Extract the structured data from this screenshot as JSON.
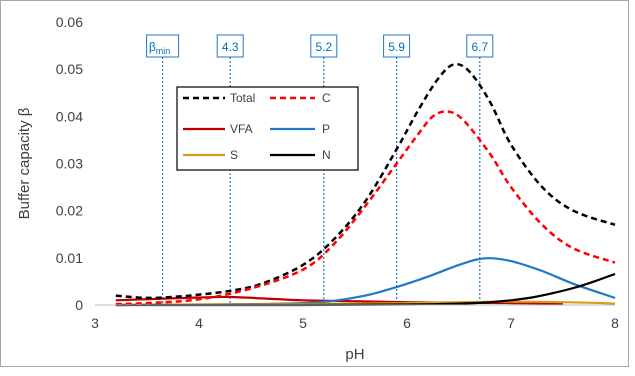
{
  "chart_data": {
    "type": "line",
    "xlabel": "pH",
    "ylabel": "Buffer capacity β",
    "xlim": [
      3,
      8
    ],
    "ylim": [
      0,
      0.06
    ],
    "x_ticks": [
      "3",
      "4",
      "5",
      "6",
      "7",
      "8"
    ],
    "y_ticks": [
      "0",
      "0.01",
      "0.02",
      "0.03",
      "0.04",
      "0.05",
      "0.06"
    ],
    "grid": false,
    "legend_placement": "top-left inside plot",
    "markers": [
      {
        "x": 3.65,
        "label": "β",
        "sub": "min"
      },
      {
        "x": 4.3,
        "label": "4.3",
        "sub": ""
      },
      {
        "x": 5.2,
        "label": "5.2",
        "sub": ""
      },
      {
        "x": 5.9,
        "label": "5.9",
        "sub": ""
      },
      {
        "x": 6.7,
        "label": "6.7",
        "sub": ""
      }
    ],
    "series": [
      {
        "name": "Total",
        "color": "#000000",
        "dash": true,
        "x": [
          3.2,
          3.5,
          3.8,
          4.0,
          4.3,
          4.6,
          5.0,
          5.3,
          5.6,
          5.9,
          6.1,
          6.3,
          6.45,
          6.6,
          6.8,
          7.0,
          7.3,
          7.6,
          8.0
        ],
        "y": [
          0.002,
          0.0015,
          0.0018,
          0.0022,
          0.003,
          0.0045,
          0.0085,
          0.014,
          0.022,
          0.033,
          0.041,
          0.048,
          0.051,
          0.0495,
          0.043,
          0.034,
          0.025,
          0.02,
          0.017
        ]
      },
      {
        "name": "C",
        "color": "#ff0000",
        "dash": true,
        "x": [
          3.2,
          3.5,
          4.0,
          4.5,
          5.0,
          5.3,
          5.6,
          5.9,
          6.1,
          6.25,
          6.4,
          6.55,
          6.8,
          7.0,
          7.3,
          7.6,
          8.0
        ],
        "y": [
          0.0002,
          0.0004,
          0.0012,
          0.0035,
          0.0075,
          0.013,
          0.021,
          0.03,
          0.036,
          0.04,
          0.041,
          0.039,
          0.032,
          0.025,
          0.017,
          0.012,
          0.009
        ]
      },
      {
        "name": "VFA",
        "color": "#c00000",
        "dash": false,
        "x": [
          3.2,
          3.6,
          4.0,
          4.3,
          4.7,
          5.0,
          5.5,
          6.0,
          6.5,
          7.0,
          7.5
        ],
        "y": [
          0.001,
          0.0013,
          0.0016,
          0.0017,
          0.0013,
          0.001,
          0.0008,
          0.0006,
          0.0005,
          0.0004,
          0.0003
        ]
      },
      {
        "name": "P",
        "color": "#1f78c8",
        "dash": false,
        "x": [
          3.2,
          4.5,
          5.0,
          5.3,
          5.6,
          5.9,
          6.2,
          6.5,
          6.75,
          7.0,
          7.3,
          7.6,
          8.0
        ],
        "y": [
          0.0,
          0.0002,
          0.0004,
          0.0009,
          0.002,
          0.0038,
          0.006,
          0.0085,
          0.0099,
          0.0093,
          0.0072,
          0.0045,
          0.0015
        ]
      },
      {
        "name": "S",
        "color": "#d4a017",
        "dash": false,
        "x": [
          3.2,
          4.0,
          5.0,
          6.0,
          6.5,
          7.0,
          7.5,
          8.0
        ],
        "y": [
          0.0,
          0.0001,
          0.0002,
          0.0004,
          0.0006,
          0.0007,
          0.0006,
          0.0003
        ]
      },
      {
        "name": "N",
        "color": "#000000",
        "dash": false,
        "x": [
          3.2,
          5.0,
          6.0,
          6.5,
          6.8,
          7.0,
          7.2,
          7.4,
          7.6,
          7.8,
          8.0
        ],
        "y": [
          0.0,
          0.0,
          0.0001,
          0.0003,
          0.0006,
          0.001,
          0.0016,
          0.0025,
          0.0036,
          0.005,
          0.0066
        ]
      }
    ]
  }
}
